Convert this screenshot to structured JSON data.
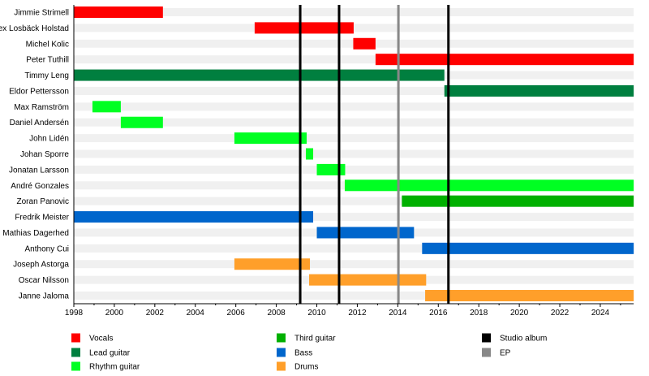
{
  "chart_data": {
    "type": "timeline",
    "xlim": [
      1998,
      2025.65
    ],
    "x_ticks": [
      1998,
      2000,
      2002,
      2004,
      2006,
      2008,
      2010,
      2012,
      2014,
      2016,
      2018,
      2020,
      2022,
      2024
    ],
    "roles": {
      "Vocals": "#ff0000",
      "Lead guitar": "#007f3f",
      "Rhythm guitar": "#00ff22",
      "Third guitar": "#00b000",
      "Bass": "#0066cc",
      "Drums": "#ff9f2a"
    },
    "members": [
      {
        "name": "Jimmie Strimell",
        "role": "Vocals",
        "start": 1998,
        "end": 2002.4
      },
      {
        "name": "Alex Losbäck Holstad",
        "role": "Vocals",
        "start": 2006.93,
        "end": 2011.82
      },
      {
        "name": "Michel Kolic",
        "role": "Vocals",
        "start": 2011.8,
        "end": 2012.9
      },
      {
        "name": "Peter Tuthill",
        "role": "Vocals",
        "start": 2012.9,
        "end": 2025.65
      },
      {
        "name": "Timmy Leng",
        "role": "Lead guitar",
        "start": 1998,
        "end": 2016.3
      },
      {
        "name": "Eldor Pettersson",
        "role": "Lead guitar",
        "start": 2016.3,
        "end": 2025.65
      },
      {
        "name": "Max Ramström",
        "role": "Rhythm guitar",
        "start": 1998.92,
        "end": 2000.32
      },
      {
        "name": "Daniel Andersén",
        "role": "Rhythm guitar",
        "start": 2000.32,
        "end": 2002.4
      },
      {
        "name": "John Lidén",
        "role": "Rhythm guitar",
        "start": 2005.93,
        "end": 2009.5
      },
      {
        "name": "Johan Sporre",
        "role": "Rhythm guitar",
        "start": 2009.46,
        "end": 2009.82
      },
      {
        "name": "Jonatan Larsson",
        "role": "Rhythm guitar",
        "start": 2010.0,
        "end": 2011.4
      },
      {
        "name": "André Gonzales",
        "role": "Rhythm guitar",
        "start": 2011.38,
        "end": 2025.65
      },
      {
        "name": "Zoran Panovic",
        "role": "Third guitar",
        "start": 2014.2,
        "end": 2025.65
      },
      {
        "name": "Fredrik Meister",
        "role": "Bass",
        "start": 1998,
        "end": 2009.82
      },
      {
        "name": "Mathias Dagerhed",
        "role": "Bass",
        "start": 2010.0,
        "end": 2014.8
      },
      {
        "name": "Anthony Cui",
        "role": "Bass",
        "start": 2015.2,
        "end": 2025.65
      },
      {
        "name": "Joseph Astorga",
        "role": "Drums",
        "start": 2005.93,
        "end": 2009.66
      },
      {
        "name": "Oscar Nilsson",
        "role": "Drums",
        "start": 2009.62,
        "end": 2015.4
      },
      {
        "name": "Janne Jaloma",
        "role": "Drums",
        "start": 2015.35,
        "end": 2025.65
      }
    ],
    "releases": [
      {
        "type": "Studio album",
        "date": 2009.18
      },
      {
        "type": "Studio album",
        "date": 2011.1
      },
      {
        "type": "EP",
        "date": 2014.03
      },
      {
        "type": "Studio album",
        "date": 2016.5
      }
    ],
    "release_colors": {
      "Studio album": "#000000",
      "EP": "#888888"
    },
    "legend": {
      "placement": "bottom",
      "items": [
        "Vocals",
        "Lead guitar",
        "Rhythm guitar",
        "Third guitar",
        "Bass",
        "Drums",
        "Studio album",
        "EP"
      ]
    }
  }
}
